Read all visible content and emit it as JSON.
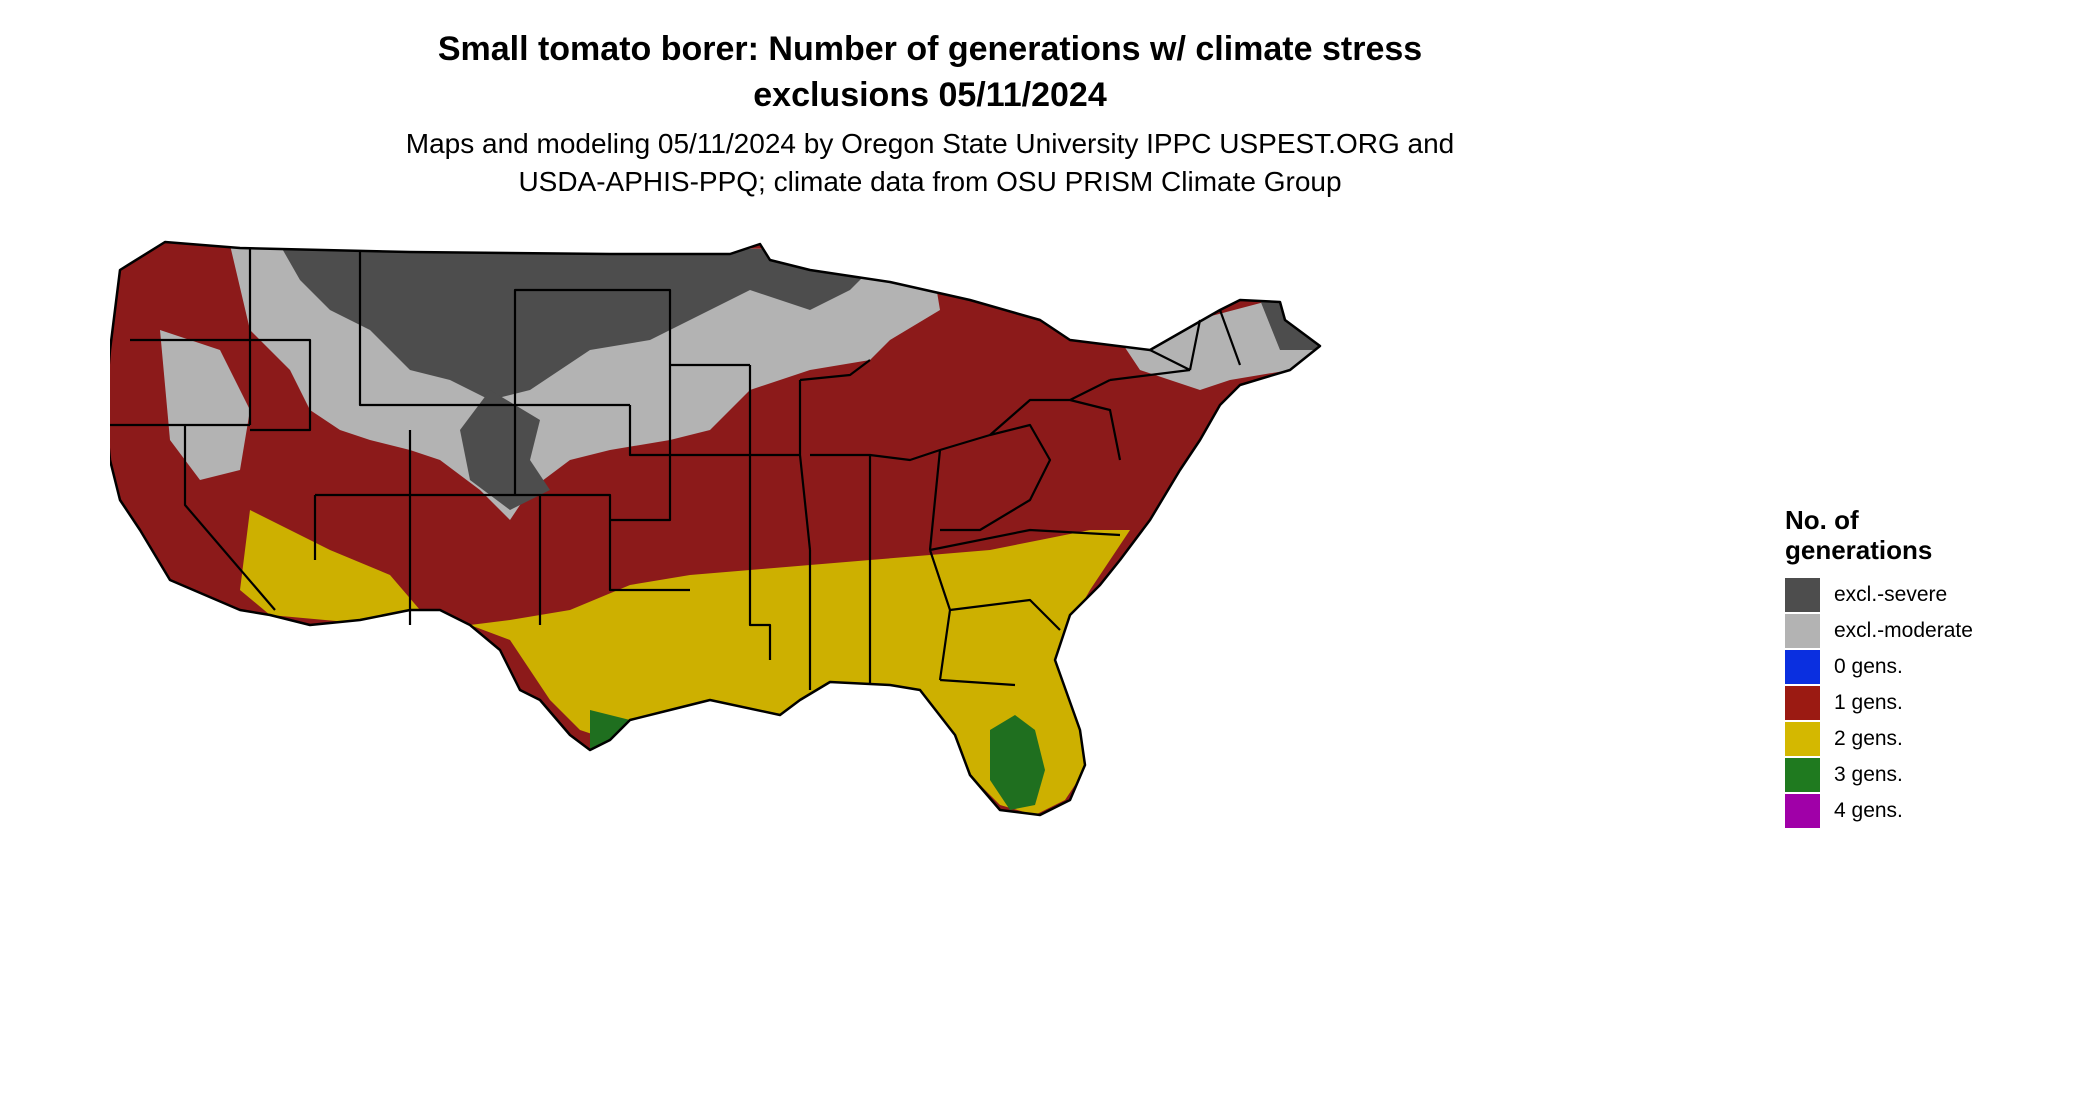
{
  "header": {
    "title_line1": "Small tomato borer: Number of generations w/ climate stress",
    "title_line2": "exclusions 05/11/2024",
    "subtitle_line1": "Maps and modeling 05/11/2024 by Oregon State University IPPC USPEST.ORG and",
    "subtitle_line2": "USDA-APHIS-PPQ; climate data from OSU PRISM Climate Group"
  },
  "legend": {
    "title_line1": "No. of",
    "title_line2": "generations",
    "items": [
      {
        "label": "excl.-severe",
        "color": "#4d4d4d"
      },
      {
        "label": "excl.-moderate",
        "color": "#b3b3b3"
      },
      {
        "label": "0 gens.",
        "color": "#0a2fe0"
      },
      {
        "label": "1 gens.",
        "color": "#9b1a12"
      },
      {
        "label": "2 gens.",
        "color": "#d4b800"
      },
      {
        "label": "3 gens.",
        "color": "#1f7a1f"
      },
      {
        "label": "4 gens.",
        "color": "#a000a8"
      }
    ]
  },
  "map": {
    "colors": {
      "severe": "#4d4d4d",
      "moderate": "#b3b3b3",
      "one_gen": "#8c1a1a",
      "two_gen": "#cdb000",
      "three_gen": "#1f6f1f",
      "edge_orange": "#e84a14",
      "border": "#000000"
    }
  }
}
